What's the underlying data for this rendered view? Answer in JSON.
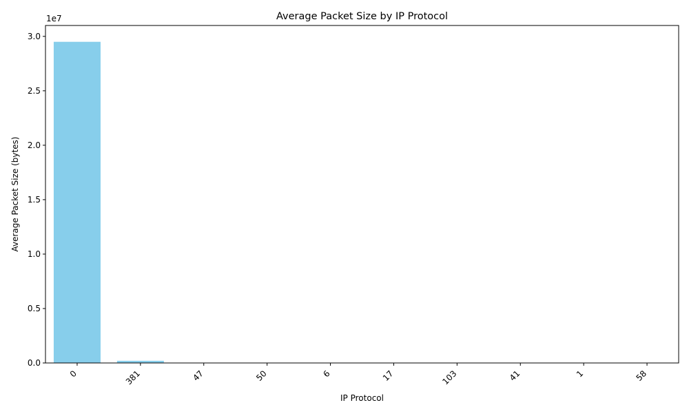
{
  "chart_data": {
    "type": "bar",
    "title": "Average Packet Size by IP Protocol",
    "xlabel": "IP Protocol",
    "ylabel": "Average Packet Size (bytes)",
    "y_scale_label": "1e7",
    "categories": [
      "0",
      "381",
      "47",
      "50",
      "6",
      "17",
      "103",
      "41",
      "1",
      "58"
    ],
    "values": [
      29500000,
      200000,
      1500,
      1200,
      900,
      700,
      500,
      400,
      150,
      120
    ],
    "ylim": [
      0,
      31000000
    ],
    "yticks": [
      0,
      5000000,
      10000000,
      15000000,
      20000000,
      25000000,
      30000000
    ],
    "ytick_labels": [
      "0.0",
      "0.5",
      "1.0",
      "1.5",
      "2.0",
      "2.5",
      "3.0"
    ],
    "xtick_rotation_deg": 45,
    "grid": false,
    "legend": "none",
    "bar_color": "#87ceeb"
  }
}
